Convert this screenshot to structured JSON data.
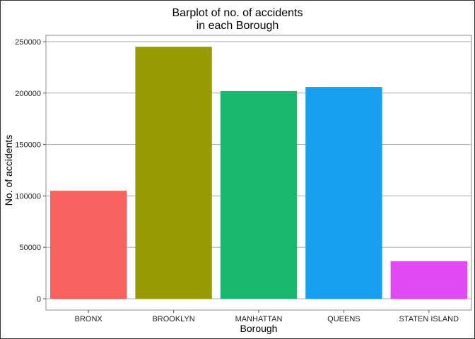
{
  "chart_data": {
    "type": "bar",
    "title_lines": [
      "Barplot of no. of accidents",
      "in each Borough"
    ],
    "xlabel": "Borough",
    "ylabel": "No. of accidents",
    "categories": [
      "BRONX",
      "BROOKLYN",
      "MANHATTAN",
      "QUEENS",
      "STATEN ISLAND"
    ],
    "values": [
      105000,
      245000,
      202000,
      206000,
      36500
    ],
    "colors": [
      "#F8615D",
      "#979A00",
      "#19B86F",
      "#18A0F0",
      "#E04AF3"
    ],
    "ylim": [
      0,
      250000
    ],
    "yticks": [
      0,
      50000,
      100000,
      150000,
      200000,
      250000
    ],
    "ytick_labels": [
      "0",
      "50000",
      "100000",
      "150000",
      "200000",
      "250000"
    ],
    "grid": true,
    "legend": "none"
  }
}
